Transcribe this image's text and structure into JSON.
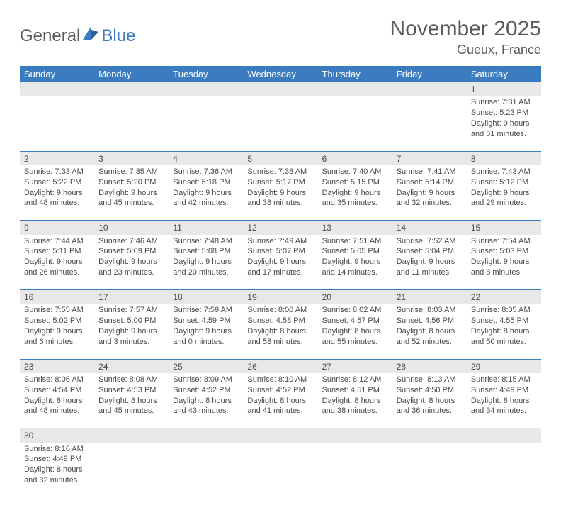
{
  "logo": {
    "general": "General",
    "blue": "Blue"
  },
  "title": "November 2025",
  "location": "Gueux, France",
  "colors": {
    "header_bg": "#3b7bbf",
    "header_text": "#ffffff",
    "daynum_bg": "#e8e8e8",
    "cell_border": "#3b7bbf",
    "text": "#4a4a4a"
  },
  "weekdays": [
    "Sunday",
    "Monday",
    "Tuesday",
    "Wednesday",
    "Thursday",
    "Friday",
    "Saturday"
  ],
  "weeks": [
    [
      null,
      null,
      null,
      null,
      null,
      null,
      {
        "n": "1",
        "sunrise": "Sunrise: 7:31 AM",
        "sunset": "Sunset: 5:23 PM",
        "daylight": "Daylight: 9 hours and 51 minutes."
      }
    ],
    [
      {
        "n": "2",
        "sunrise": "Sunrise: 7:33 AM",
        "sunset": "Sunset: 5:22 PM",
        "daylight": "Daylight: 9 hours and 48 minutes."
      },
      {
        "n": "3",
        "sunrise": "Sunrise: 7:35 AM",
        "sunset": "Sunset: 5:20 PM",
        "daylight": "Daylight: 9 hours and 45 minutes."
      },
      {
        "n": "4",
        "sunrise": "Sunrise: 7:36 AM",
        "sunset": "Sunset: 5:18 PM",
        "daylight": "Daylight: 9 hours and 42 minutes."
      },
      {
        "n": "5",
        "sunrise": "Sunrise: 7:38 AM",
        "sunset": "Sunset: 5:17 PM",
        "daylight": "Daylight: 9 hours and 38 minutes."
      },
      {
        "n": "6",
        "sunrise": "Sunrise: 7:40 AM",
        "sunset": "Sunset: 5:15 PM",
        "daylight": "Daylight: 9 hours and 35 minutes."
      },
      {
        "n": "7",
        "sunrise": "Sunrise: 7:41 AM",
        "sunset": "Sunset: 5:14 PM",
        "daylight": "Daylight: 9 hours and 32 minutes."
      },
      {
        "n": "8",
        "sunrise": "Sunrise: 7:43 AM",
        "sunset": "Sunset: 5:12 PM",
        "daylight": "Daylight: 9 hours and 29 minutes."
      }
    ],
    [
      {
        "n": "9",
        "sunrise": "Sunrise: 7:44 AM",
        "sunset": "Sunset: 5:11 PM",
        "daylight": "Daylight: 9 hours and 26 minutes."
      },
      {
        "n": "10",
        "sunrise": "Sunrise: 7:46 AM",
        "sunset": "Sunset: 5:09 PM",
        "daylight": "Daylight: 9 hours and 23 minutes."
      },
      {
        "n": "11",
        "sunrise": "Sunrise: 7:48 AM",
        "sunset": "Sunset: 5:08 PM",
        "daylight": "Daylight: 9 hours and 20 minutes."
      },
      {
        "n": "12",
        "sunrise": "Sunrise: 7:49 AM",
        "sunset": "Sunset: 5:07 PM",
        "daylight": "Daylight: 9 hours and 17 minutes."
      },
      {
        "n": "13",
        "sunrise": "Sunrise: 7:51 AM",
        "sunset": "Sunset: 5:05 PM",
        "daylight": "Daylight: 9 hours and 14 minutes."
      },
      {
        "n": "14",
        "sunrise": "Sunrise: 7:52 AM",
        "sunset": "Sunset: 5:04 PM",
        "daylight": "Daylight: 9 hours and 11 minutes."
      },
      {
        "n": "15",
        "sunrise": "Sunrise: 7:54 AM",
        "sunset": "Sunset: 5:03 PM",
        "daylight": "Daylight: 9 hours and 8 minutes."
      }
    ],
    [
      {
        "n": "16",
        "sunrise": "Sunrise: 7:55 AM",
        "sunset": "Sunset: 5:02 PM",
        "daylight": "Daylight: 9 hours and 6 minutes."
      },
      {
        "n": "17",
        "sunrise": "Sunrise: 7:57 AM",
        "sunset": "Sunset: 5:00 PM",
        "daylight": "Daylight: 9 hours and 3 minutes."
      },
      {
        "n": "18",
        "sunrise": "Sunrise: 7:59 AM",
        "sunset": "Sunset: 4:59 PM",
        "daylight": "Daylight: 9 hours and 0 minutes."
      },
      {
        "n": "19",
        "sunrise": "Sunrise: 8:00 AM",
        "sunset": "Sunset: 4:58 PM",
        "daylight": "Daylight: 8 hours and 58 minutes."
      },
      {
        "n": "20",
        "sunrise": "Sunrise: 8:02 AM",
        "sunset": "Sunset: 4:57 PM",
        "daylight": "Daylight: 8 hours and 55 minutes."
      },
      {
        "n": "21",
        "sunrise": "Sunrise: 8:03 AM",
        "sunset": "Sunset: 4:56 PM",
        "daylight": "Daylight: 8 hours and 52 minutes."
      },
      {
        "n": "22",
        "sunrise": "Sunrise: 8:05 AM",
        "sunset": "Sunset: 4:55 PM",
        "daylight": "Daylight: 8 hours and 50 minutes."
      }
    ],
    [
      {
        "n": "23",
        "sunrise": "Sunrise: 8:06 AM",
        "sunset": "Sunset: 4:54 PM",
        "daylight": "Daylight: 8 hours and 48 minutes."
      },
      {
        "n": "24",
        "sunrise": "Sunrise: 8:08 AM",
        "sunset": "Sunset: 4:53 PM",
        "daylight": "Daylight: 8 hours and 45 minutes."
      },
      {
        "n": "25",
        "sunrise": "Sunrise: 8:09 AM",
        "sunset": "Sunset: 4:52 PM",
        "daylight": "Daylight: 8 hours and 43 minutes."
      },
      {
        "n": "26",
        "sunrise": "Sunrise: 8:10 AM",
        "sunset": "Sunset: 4:52 PM",
        "daylight": "Daylight: 8 hours and 41 minutes."
      },
      {
        "n": "27",
        "sunrise": "Sunrise: 8:12 AM",
        "sunset": "Sunset: 4:51 PM",
        "daylight": "Daylight: 8 hours and 38 minutes."
      },
      {
        "n": "28",
        "sunrise": "Sunrise: 8:13 AM",
        "sunset": "Sunset: 4:50 PM",
        "daylight": "Daylight: 8 hours and 36 minutes."
      },
      {
        "n": "29",
        "sunrise": "Sunrise: 8:15 AM",
        "sunset": "Sunset: 4:49 PM",
        "daylight": "Daylight: 8 hours and 34 minutes."
      }
    ],
    [
      {
        "n": "30",
        "sunrise": "Sunrise: 8:16 AM",
        "sunset": "Sunset: 4:49 PM",
        "daylight": "Daylight: 8 hours and 32 minutes."
      },
      null,
      null,
      null,
      null,
      null,
      null
    ]
  ]
}
